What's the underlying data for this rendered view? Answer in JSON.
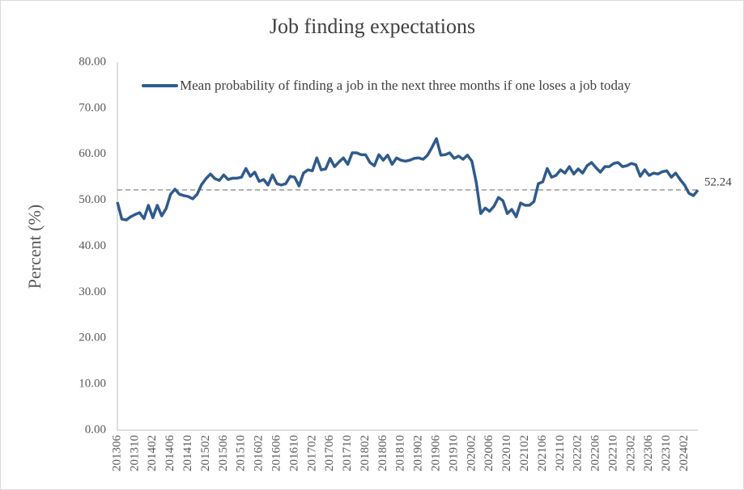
{
  "chart_data": {
    "type": "line",
    "title": "Job finding expectations",
    "y_label": "Percent (%)",
    "categories": [
      "201306",
      null,
      null,
      null,
      "201310",
      null,
      null,
      null,
      "201402",
      null,
      null,
      null,
      "201406",
      null,
      null,
      null,
      "201410",
      null,
      null,
      null,
      "201502",
      null,
      null,
      null,
      "201506",
      null,
      null,
      null,
      "201510",
      null,
      null,
      null,
      "201602",
      null,
      null,
      null,
      "201606",
      null,
      null,
      null,
      "201610",
      null,
      null,
      null,
      "201702",
      null,
      null,
      null,
      "201706",
      null,
      null,
      null,
      "201710",
      null,
      null,
      null,
      "201802",
      null,
      null,
      null,
      "201806",
      null,
      null,
      null,
      "201810",
      null,
      null,
      null,
      "201902",
      null,
      null,
      null,
      "201906",
      null,
      null,
      null,
      "201910",
      null,
      null,
      null,
      "202002",
      null,
      null,
      null,
      "202006",
      null,
      null,
      null,
      "202010",
      null,
      null,
      null,
      "202102",
      null,
      null,
      null,
      "202106",
      null,
      null,
      null,
      "202110",
      null,
      null,
      null,
      "202202",
      null,
      null,
      null,
      "202206",
      null,
      null,
      null,
      "202210",
      null,
      null,
      null,
      "202302",
      null,
      null,
      null,
      "202306",
      null,
      null,
      null,
      "202310",
      null,
      null,
      null,
      "202402",
      null,
      null,
      null
    ],
    "series": [
      {
        "name": "Mean probability of finding a job in the next three months if one loses a job today",
        "color": "#2f5b8c",
        "values": [
          49.6,
          45.9,
          45.7,
          46.4,
          46.9,
          47.3,
          46.0,
          48.9,
          46.2,
          48.9,
          46.6,
          48.2,
          51.3,
          52.4,
          51.3,
          51.0,
          50.8,
          50.3,
          51.3,
          53.4,
          54.7,
          55.7,
          54.7,
          54.3,
          55.5,
          54.5,
          54.8,
          54.8,
          55.0,
          56.9,
          55.2,
          56.1,
          54.1,
          54.5,
          53.3,
          55.5,
          53.6,
          53.3,
          53.6,
          55.2,
          55.0,
          53.1,
          55.9,
          56.6,
          56.4,
          59.2,
          56.6,
          56.8,
          59.1,
          57.3,
          58.3,
          59.2,
          57.8,
          60.3,
          60.3,
          59.9,
          59.9,
          58.2,
          57.5,
          59.9,
          58.7,
          59.8,
          57.8,
          59.2,
          58.7,
          58.5,
          58.7,
          59.1,
          59.2,
          58.9,
          59.8,
          61.5,
          63.4,
          59.8,
          59.9,
          60.3,
          59.1,
          59.6,
          58.9,
          59.8,
          58.5,
          53.8,
          47.1,
          48.3,
          47.6,
          48.7,
          50.6,
          49.9,
          47.1,
          48.0,
          46.4,
          49.4,
          48.9,
          48.9,
          49.7,
          53.6,
          54.0,
          56.9,
          55.0,
          55.4,
          56.6,
          55.9,
          57.3,
          55.7,
          56.8,
          55.9,
          57.5,
          58.2,
          57.1,
          56.1,
          57.3,
          57.3,
          58.0,
          58.2,
          57.3,
          57.5,
          58.0,
          57.7,
          55.2,
          56.6,
          55.4,
          55.9,
          55.7,
          56.2,
          56.4,
          55.0,
          55.9,
          54.5,
          53.3,
          51.5,
          51.0,
          52.2
        ]
      }
    ],
    "reference_line": {
      "value": 52.24,
      "label": "52.24",
      "color": "#999999"
    },
    "ylim": [
      0,
      80
    ],
    "yticks": [
      {
        "value": 0,
        "label": "0.00"
      },
      {
        "value": 10,
        "label": "10.00"
      },
      {
        "value": 20,
        "label": "20.00"
      },
      {
        "value": 30,
        "label": "30.00"
      },
      {
        "value": 40,
        "label": "40.00"
      },
      {
        "value": 50,
        "label": "50.00"
      },
      {
        "value": 60,
        "label": "60.00"
      },
      {
        "value": 70,
        "label": "70.00"
      },
      {
        "value": 80,
        "label": "80.00"
      }
    ],
    "grid": false,
    "legend": "top"
  }
}
